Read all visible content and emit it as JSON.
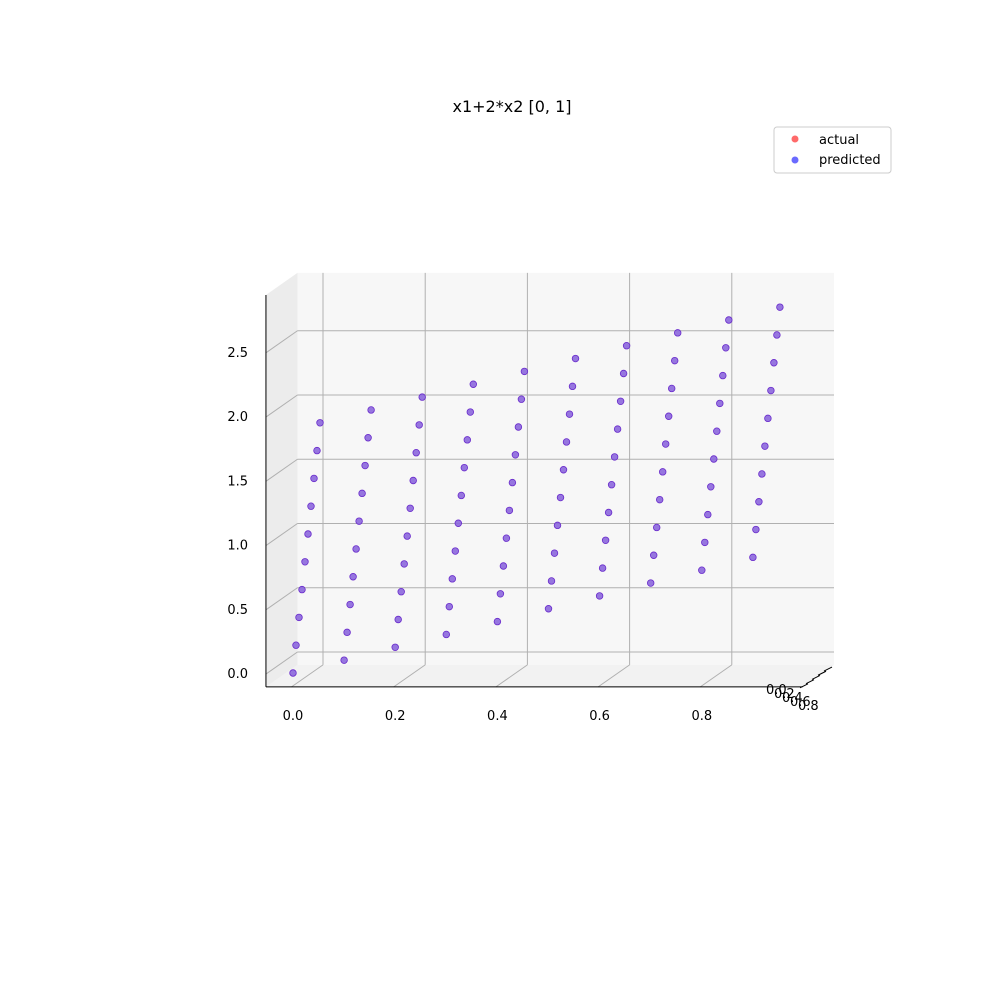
{
  "chart_data": {
    "type": "scatter",
    "projection": "3d",
    "title": "x1+2*x2 [0, 1]",
    "x_ticks": [
      "0.0",
      "0.2",
      "0.4",
      "0.6",
      "0.8"
    ],
    "z_ticks": [
      "0.0",
      "0.5",
      "1.0",
      "1.5",
      "2.0",
      "2.5"
    ],
    "y_ticks": [
      "0.0",
      "0.2",
      "0.4",
      "0.6",
      "0.8"
    ],
    "x_range": [
      -0.05,
      1.0
    ],
    "y_range": [
      -0.05,
      1.0
    ],
    "z_range": [
      -0.1,
      2.95
    ],
    "grid": true,
    "legend": {
      "position": "top-right",
      "entries": [
        {
          "label": "actual",
          "color": "#ff6a6a"
        },
        {
          "label": "predicted",
          "color": "#6a6aff"
        }
      ]
    },
    "x_values": [
      0.0,
      0.1,
      0.2,
      0.3,
      0.4,
      0.5,
      0.6,
      0.7,
      0.8,
      0.9
    ],
    "y_values": [
      0.0,
      0.1,
      0.2,
      0.3,
      0.4,
      0.5,
      0.6,
      0.7,
      0.8,
      0.9
    ],
    "function": "z = x1 + 2*x2",
    "series": [
      {
        "name": "actual",
        "color": "#ff6a6a"
      },
      {
        "name": "predicted",
        "color": "#6a6aff"
      }
    ],
    "overlap_color": "#6a2ccc"
  }
}
